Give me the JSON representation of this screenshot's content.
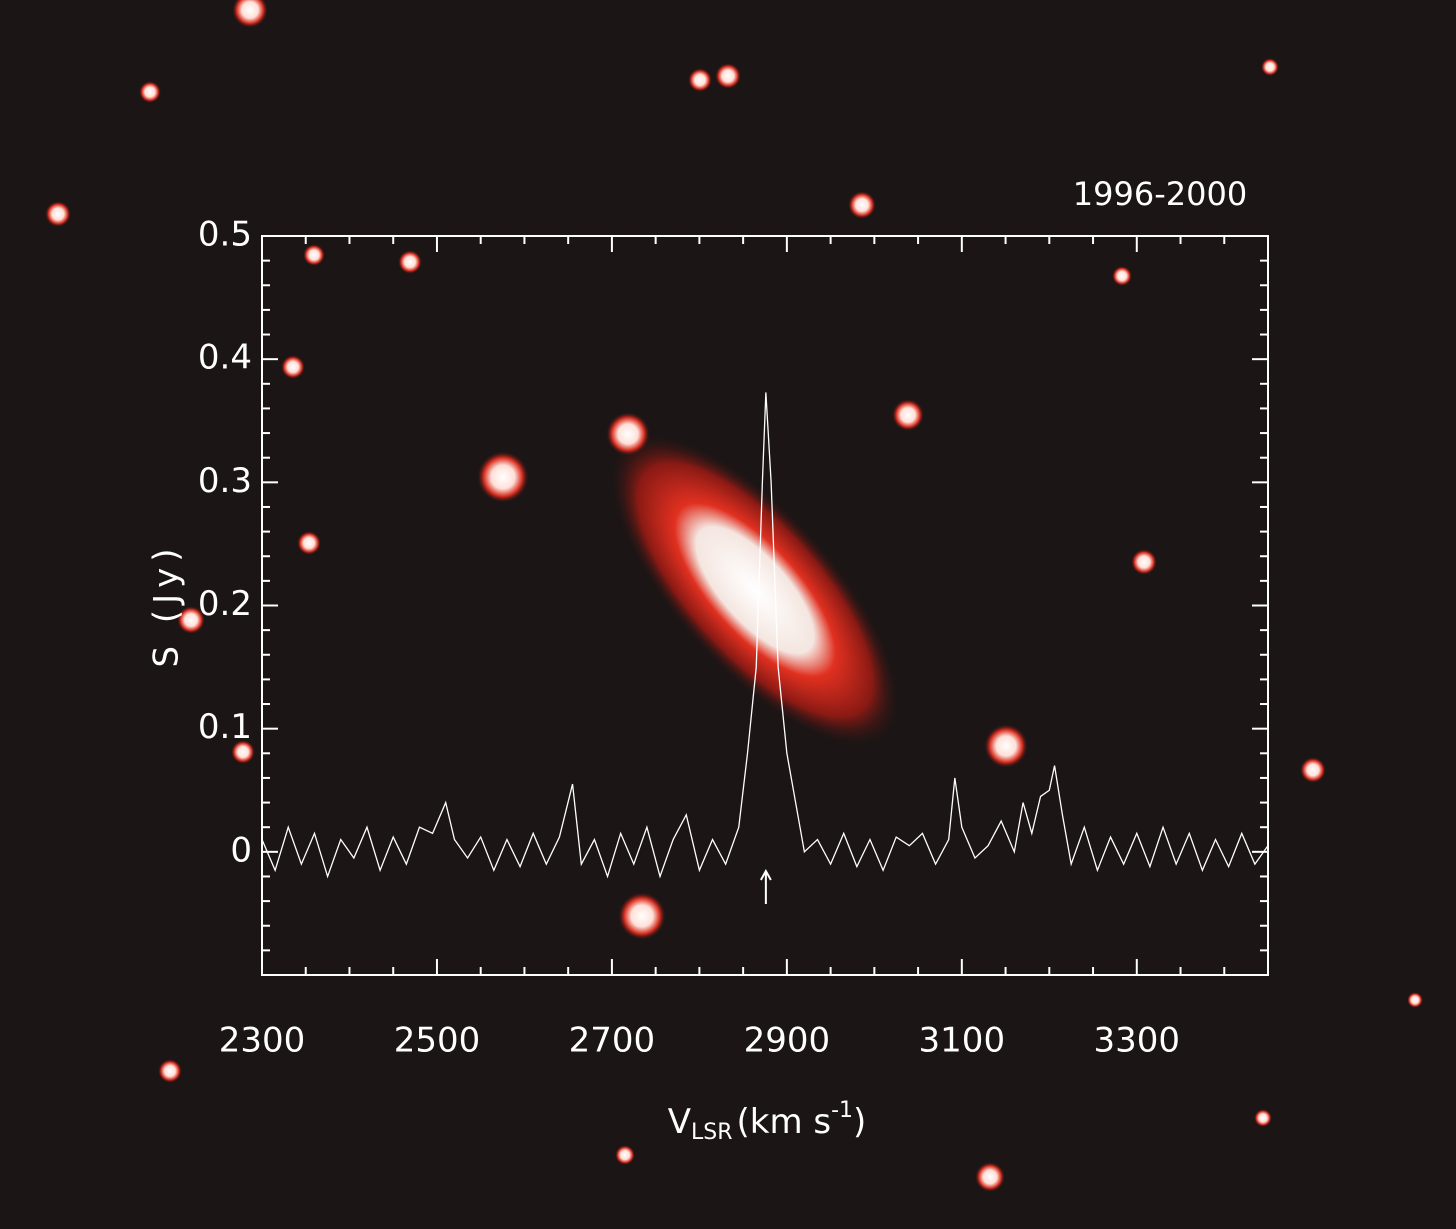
{
  "chart_data": {
    "type": "line",
    "title": "1996-2000",
    "ylabel": "S (Jy)",
    "xlabel": {
      "main": "V",
      "sub": "LSR",
      "unit": "(km s",
      "sup": "-1",
      "close": ")"
    },
    "color": "#ffffff",
    "x": [
      2300,
      2315,
      2330,
      2345,
      2360,
      2375,
      2390,
      2405,
      2420,
      2435,
      2450,
      2465,
      2480,
      2495,
      2510,
      2520,
      2535,
      2550,
      2565,
      2580,
      2595,
      2610,
      2625,
      2640,
      2655,
      2665,
      2680,
      2695,
      2710,
      2725,
      2740,
      2755,
      2770,
      2785,
      2800,
      2815,
      2830,
      2845,
      2855,
      2865,
      2872,
      2876,
      2882,
      2890,
      2900,
      2910,
      2920,
      2935,
      2950,
      2965,
      2980,
      2995,
      3010,
      3025,
      3040,
      3055,
      3070,
      3085,
      3092,
      3100,
      3115,
      3130,
      3145,
      3160,
      3170,
      3180,
      3190,
      3200,
      3206,
      3215,
      3225,
      3240,
      3255,
      3270,
      3285,
      3300,
      3315,
      3330,
      3345,
      3360,
      3375,
      3390,
      3405,
      3420,
      3435,
      3450
    ],
    "values": [
      0.01,
      -0.015,
      0.02,
      -0.01,
      0.015,
      -0.02,
      0.01,
      -0.005,
      0.02,
      -0.015,
      0.012,
      -0.01,
      0.02,
      0.015,
      0.04,
      0.01,
      -0.005,
      0.012,
      -0.015,
      0.01,
      -0.012,
      0.015,
      -0.01,
      0.012,
      0.055,
      -0.01,
      0.01,
      -0.02,
      0.015,
      -0.01,
      0.02,
      -0.02,
      0.01,
      0.03,
      -0.015,
      0.01,
      -0.01,
      0.02,
      0.08,
      0.15,
      0.3,
      0.373,
      0.3,
      0.15,
      0.08,
      0.04,
      0.0,
      0.01,
      -0.01,
      0.015,
      -0.012,
      0.01,
      -0.015,
      0.012,
      0.005,
      0.015,
      -0.01,
      0.01,
      0.06,
      0.02,
      -0.005,
      0.005,
      0.025,
      0.0,
      0.04,
      0.015,
      0.045,
      0.05,
      0.07,
      0.03,
      -0.01,
      0.02,
      -0.015,
      0.012,
      -0.01,
      0.015,
      -0.012,
      0.02,
      -0.01,
      0.015,
      -0.015,
      0.01,
      -0.012,
      0.015,
      -0.01,
      0.005
    ],
    "xlim": [
      2300,
      3450
    ],
    "ylim": [
      -0.1,
      0.5
    ],
    "xticks": [
      2300,
      2500,
      2700,
      2900,
      3100,
      3300
    ],
    "yticks": [
      0,
      0.1,
      0.2,
      0.3,
      0.4,
      0.5
    ],
    "xminorticks": [
      2350,
      2400,
      2450,
      2550,
      2600,
      2650,
      2750,
      2800,
      2850,
      2950,
      3000,
      3050,
      3150,
      3200,
      3250,
      3350,
      3400
    ],
    "yminorticks": [
      -0.08,
      -0.06,
      -0.04,
      -0.02,
      0.02,
      0.04,
      0.06,
      0.08,
      0.12,
      0.14,
      0.16,
      0.18,
      0.22,
      0.24,
      0.26,
      0.28,
      0.32,
      0.34,
      0.36,
      0.38,
      0.42,
      0.44,
      0.46,
      0.48
    ],
    "arrow_x": 2876
  }
}
